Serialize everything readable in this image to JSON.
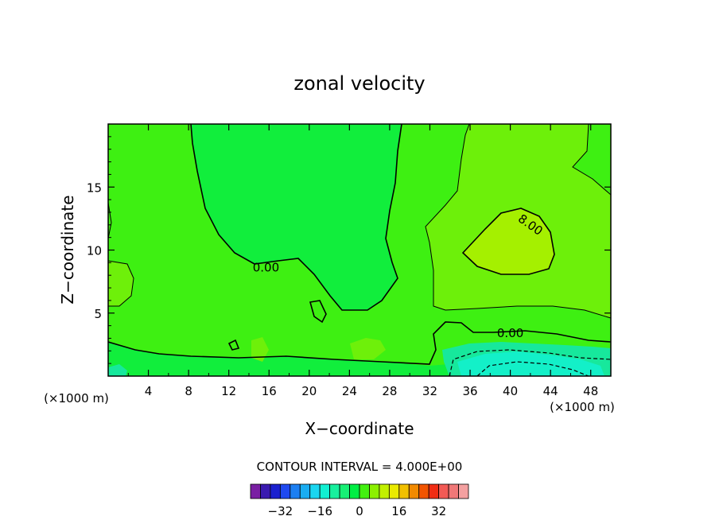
{
  "chart_data": {
    "type": "contour",
    "title": "zonal velocity",
    "xlabel": "X−coordinate",
    "ylabel": "Z−coordinate",
    "x_units": "(×1000 m)",
    "xlim": [
      0,
      50
    ],
    "ylim": [
      0,
      20
    ],
    "x_ticks": [
      4,
      8,
      12,
      16,
      20,
      24,
      28,
      32,
      36,
      40,
      44,
      48
    ],
    "y_ticks": [
      5,
      10,
      15
    ],
    "contour_labels": [
      {
        "text": "0.00",
        "x": 15.7,
        "z": 8.6
      },
      {
        "text": "8.00",
        "x": 42.0,
        "z": 12.0
      },
      {
        "text": "0.00",
        "x": 40.0,
        "z": 3.4
      }
    ],
    "contour_interval_text": "CONTOUR INTERVAL = 4.000E+00",
    "colorbar": {
      "levels": [
        -36,
        -32,
        -28,
        -24,
        -20,
        -16,
        -12,
        -8,
        -4,
        0,
        4,
        8,
        12,
        16,
        20,
        24,
        28,
        32,
        36
      ],
      "colors": [
        "#7a1fa3",
        "#3a1ab0",
        "#1a20cf",
        "#1f49f0",
        "#1c7ff2",
        "#19adf2",
        "#1ad6f0",
        "#12f0d2",
        "#17f09e",
        "#17f075",
        "#00ef44",
        "#42f010",
        "#8cf000",
        "#c2f000",
        "#eaea00",
        "#f2c000",
        "#f28a00",
        "#f25400",
        "#f02d14",
        "#f25a55",
        "#f07878",
        "#f3a0a0"
      ],
      "tick_labels": [
        "−32",
        "−16",
        "0",
        "16",
        "32"
      ],
      "tick_values": [
        -32,
        -16,
        0,
        16,
        32
      ]
    }
  }
}
